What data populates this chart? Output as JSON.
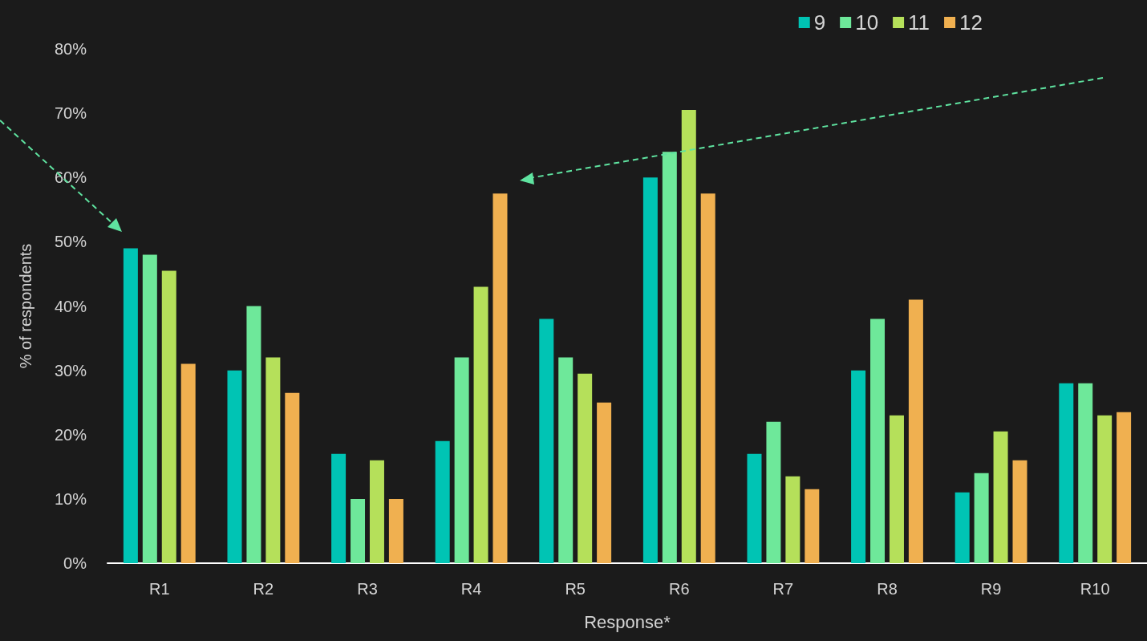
{
  "chart_data": {
    "type": "bar",
    "xlabel": "Response*",
    "ylabel": "% of respondents",
    "categories": [
      "R1",
      "R2",
      "R3",
      "R4",
      "R5",
      "R6",
      "R7",
      "R8",
      "R9",
      "R10"
    ],
    "series": [
      {
        "name": "9",
        "color": "#00c4b4",
        "values": [
          49,
          30,
          17,
          19,
          38,
          60,
          17,
          30,
          11,
          28
        ]
      },
      {
        "name": "10",
        "color": "#6ee89a",
        "values": [
          48,
          40,
          10,
          32,
          32,
          64,
          22,
          38,
          14,
          28
        ]
      },
      {
        "name": "11",
        "color": "#b5e05a",
        "values": [
          45.5,
          32,
          16,
          43,
          29.5,
          70.5,
          13.5,
          23,
          20.5,
          23
        ]
      },
      {
        "name": "12",
        "color": "#f0b050",
        "values": [
          31,
          26.5,
          10,
          57.5,
          25,
          57.5,
          11.5,
          41,
          16,
          23.5
        ]
      }
    ],
    "ylim": [
      0,
      80
    ],
    "yticks": [
      {
        "value": 0,
        "label": "0%"
      },
      {
        "value": 10,
        "label": "10%"
      },
      {
        "value": 20,
        "label": "20%"
      },
      {
        "value": 30,
        "label": "30%"
      },
      {
        "value": 40,
        "label": "40%"
      },
      {
        "value": 50,
        "label": "50%"
      },
      {
        "value": 60,
        "label": "60%"
      },
      {
        "value": 70,
        "label": "70%"
      },
      {
        "value": 80,
        "label": "80%"
      }
    ],
    "grid": false,
    "legend": "top right"
  }
}
